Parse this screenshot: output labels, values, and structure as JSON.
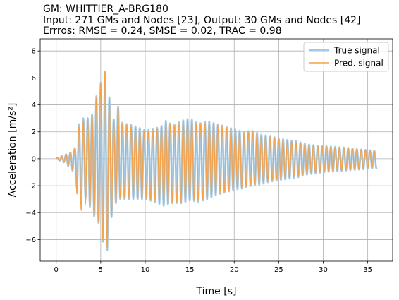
{
  "title": {
    "line1": "GM: WHITTIER_A-BRG180",
    "line2": "Input: 271 GMs and Nodes [23], Output: 30 GMs and Nodes [42]",
    "line3": "Errros: RMSE = 0.24, SMSE = 0.02, TRAC = 0.98"
  },
  "chart_data": {
    "type": "line",
    "title": "GM: WHITTIER_A-BRG180",
    "xlabel": "Time [s]",
    "ylabel": "Acceleration [m/s²]",
    "xlim": [
      -1.8,
      37.8
    ],
    "ylim": [
      -7.6,
      8.9
    ],
    "xticks": [
      0,
      5,
      10,
      15,
      20,
      25,
      30,
      35
    ],
    "yticks": [
      -6,
      -4,
      -2,
      0,
      2,
      4,
      6,
      8
    ],
    "grid": true,
    "legend_position": "top-right",
    "duration": 36,
    "colors": {
      "true_signal": "#a6c8e0",
      "pred_signal": "#f5a24a"
    },
    "series": [
      {
        "name": "True signal",
        "envelope_peaks": [
          [
            0.0,
            0.05
          ],
          [
            1.0,
            0.3
          ],
          [
            2.0,
            0.6
          ],
          [
            2.4,
            1.5
          ],
          [
            2.5,
            2.5
          ],
          [
            3.0,
            3.0
          ],
          [
            3.5,
            3.0
          ],
          [
            4.0,
            3.2
          ],
          [
            4.4,
            4.5
          ],
          [
            4.8,
            5.0
          ],
          [
            5.1,
            6.0
          ],
          [
            5.3,
            8.0
          ],
          [
            5.6,
            5.5
          ],
          [
            6.0,
            4.5
          ],
          [
            6.5,
            2.8
          ],
          [
            7.0,
            4.0
          ],
          [
            7.5,
            2.5
          ],
          [
            8.0,
            2.6
          ],
          [
            9.0,
            2.4
          ],
          [
            10.0,
            2.1
          ],
          [
            11.0,
            2.2
          ],
          [
            12.0,
            2.5
          ],
          [
            12.5,
            3.0
          ],
          [
            13.0,
            2.4
          ],
          [
            14.0,
            2.8
          ],
          [
            15.0,
            3.0
          ],
          [
            16.0,
            2.6
          ],
          [
            17.0,
            2.8
          ],
          [
            18.0,
            2.6
          ],
          [
            19.0,
            2.4
          ],
          [
            20.0,
            2.2
          ],
          [
            21.0,
            2.0
          ],
          [
            22.0,
            2.1
          ],
          [
            23.0,
            1.8
          ],
          [
            24.0,
            1.7
          ],
          [
            25.0,
            1.5
          ],
          [
            26.0,
            1.4
          ],
          [
            27.0,
            1.3
          ],
          [
            28.0,
            1.1
          ],
          [
            29.0,
            1.0
          ],
          [
            30.0,
            0.95
          ],
          [
            31.0,
            0.9
          ],
          [
            32.0,
            0.85
          ],
          [
            33.0,
            0.8
          ],
          [
            34.0,
            0.7
          ],
          [
            35.0,
            0.65
          ],
          [
            36.0,
            0.6
          ]
        ],
        "envelope_troughs": [
          [
            0.0,
            -0.05
          ],
          [
            1.0,
            -0.3
          ],
          [
            2.0,
            -1.0
          ],
          [
            2.4,
            -2.5
          ],
          [
            2.5,
            -3.8
          ],
          [
            3.0,
            -2.8
          ],
          [
            3.5,
            -3.0
          ],
          [
            4.0,
            -4.0
          ],
          [
            4.5,
            -4.5
          ],
          [
            5.0,
            -5.0
          ],
          [
            5.3,
            -6.4
          ],
          [
            5.7,
            -7.0
          ],
          [
            6.0,
            -5.0
          ],
          [
            6.5,
            -3.5
          ],
          [
            7.0,
            -3.0
          ],
          [
            8.0,
            -3.0
          ],
          [
            9.0,
            -3.0
          ],
          [
            10.0,
            -3.0
          ],
          [
            11.0,
            -3.2
          ],
          [
            12.0,
            -3.5
          ],
          [
            13.0,
            -3.3
          ],
          [
            14.0,
            -3.3
          ],
          [
            15.0,
            -3.1
          ],
          [
            16.0,
            -3.2
          ],
          [
            17.0,
            -3.0
          ],
          [
            18.0,
            -2.7
          ],
          [
            19.0,
            -2.5
          ],
          [
            20.0,
            -2.3
          ],
          [
            21.0,
            -2.2
          ],
          [
            22.0,
            -2.0
          ],
          [
            23.0,
            -1.9
          ],
          [
            24.0,
            -1.7
          ],
          [
            25.0,
            -1.6
          ],
          [
            26.0,
            -1.5
          ],
          [
            27.0,
            -1.4
          ],
          [
            28.0,
            -1.2
          ],
          [
            29.0,
            -1.1
          ],
          [
            30.0,
            -1.0
          ],
          [
            31.0,
            -0.95
          ],
          [
            32.0,
            -0.9
          ],
          [
            33.0,
            -0.85
          ],
          [
            34.0,
            -0.8
          ],
          [
            35.0,
            -0.75
          ],
          [
            36.0,
            -0.7
          ]
        ]
      },
      {
        "name": "Pred. signal",
        "envelope_peaks": [
          [
            0.0,
            0.05
          ],
          [
            1.0,
            0.3
          ],
          [
            2.0,
            0.55
          ],
          [
            2.5,
            2.3
          ],
          [
            3.0,
            2.8
          ],
          [
            3.5,
            2.9
          ],
          [
            4.0,
            3.1
          ],
          [
            4.4,
            4.4
          ],
          [
            4.8,
            4.9
          ],
          [
            5.1,
            5.9
          ],
          [
            5.3,
            8.1
          ],
          [
            5.6,
            5.4
          ],
          [
            6.0,
            4.4
          ],
          [
            6.5,
            2.7
          ],
          [
            7.0,
            3.9
          ],
          [
            7.5,
            2.4
          ],
          [
            8.0,
            2.5
          ],
          [
            9.0,
            2.3
          ],
          [
            10.0,
            2.0
          ],
          [
            11.0,
            2.1
          ],
          [
            12.0,
            2.4
          ],
          [
            12.5,
            2.9
          ],
          [
            13.0,
            2.3
          ],
          [
            14.0,
            2.7
          ],
          [
            15.0,
            2.9
          ],
          [
            16.0,
            2.5
          ],
          [
            17.0,
            2.7
          ],
          [
            18.0,
            2.5
          ],
          [
            19.0,
            2.3
          ],
          [
            20.0,
            2.1
          ],
          [
            21.0,
            1.9
          ],
          [
            22.0,
            2.0
          ],
          [
            23.0,
            1.7
          ],
          [
            24.0,
            1.6
          ],
          [
            25.0,
            1.4
          ],
          [
            26.0,
            1.3
          ],
          [
            27.0,
            1.2
          ],
          [
            28.0,
            1.0
          ],
          [
            29.0,
            0.95
          ],
          [
            30.0,
            0.9
          ],
          [
            31.0,
            0.85
          ],
          [
            32.0,
            0.8
          ],
          [
            33.0,
            0.75
          ],
          [
            34.0,
            0.7
          ],
          [
            35.0,
            0.6
          ],
          [
            36.0,
            0.55
          ]
        ],
        "envelope_troughs": [
          [
            0.0,
            -0.05
          ],
          [
            1.0,
            -0.3
          ],
          [
            2.0,
            -0.9
          ],
          [
            2.5,
            -3.6
          ],
          [
            3.0,
            -4.0
          ],
          [
            3.5,
            -2.9
          ],
          [
            4.0,
            -3.9
          ],
          [
            4.5,
            -4.4
          ],
          [
            5.0,
            -4.9
          ],
          [
            5.3,
            -6.3
          ],
          [
            5.7,
            -6.8
          ],
          [
            6.0,
            -4.9
          ],
          [
            6.5,
            -3.4
          ],
          [
            7.0,
            -2.9
          ],
          [
            8.0,
            -2.9
          ],
          [
            9.0,
            -2.9
          ],
          [
            10.0,
            -2.9
          ],
          [
            11.0,
            -3.1
          ],
          [
            12.0,
            -3.4
          ],
          [
            13.0,
            -3.2
          ],
          [
            14.0,
            -3.2
          ],
          [
            15.0,
            -3.0
          ],
          [
            16.0,
            -3.1
          ],
          [
            17.0,
            -2.9
          ],
          [
            18.0,
            -2.6
          ],
          [
            19.0,
            -2.4
          ],
          [
            20.0,
            -2.2
          ],
          [
            21.0,
            -2.1
          ],
          [
            22.0,
            -1.9
          ],
          [
            23.0,
            -1.8
          ],
          [
            24.0,
            -1.6
          ],
          [
            25.0,
            -1.5
          ],
          [
            26.0,
            -1.4
          ],
          [
            27.0,
            -1.3
          ],
          [
            28.0,
            -1.1
          ],
          [
            29.0,
            -1.0
          ],
          [
            30.0,
            -0.95
          ],
          [
            31.0,
            -0.9
          ],
          [
            32.0,
            -0.85
          ],
          [
            33.0,
            -0.8
          ],
          [
            34.0,
            -0.75
          ],
          [
            35.0,
            -0.7
          ],
          [
            36.0,
            -0.65
          ]
        ]
      }
    ]
  }
}
